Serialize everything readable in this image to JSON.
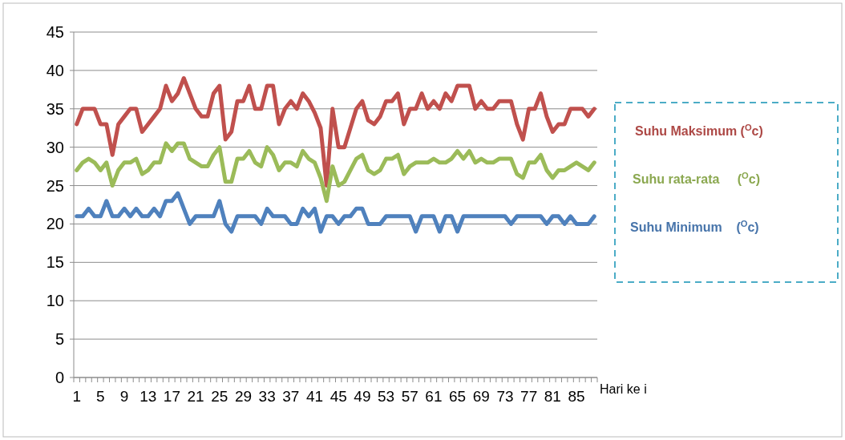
{
  "chart_data": {
    "type": "line",
    "xlabel": "Hari ke i",
    "categories": [
      "1",
      null,
      null,
      null,
      "5",
      null,
      null,
      null,
      "9",
      null,
      null,
      null,
      "13",
      null,
      null,
      null,
      "17",
      null,
      null,
      null,
      "21",
      null,
      null,
      null,
      "25",
      null,
      null,
      null,
      "29",
      null,
      null,
      null,
      "33",
      null,
      null,
      null,
      "37",
      null,
      null,
      null,
      "41",
      null,
      null,
      null,
      "45",
      null,
      null,
      null,
      "49",
      null,
      null,
      null,
      "53",
      null,
      null,
      null,
      "57",
      null,
      null,
      null,
      "61",
      null,
      null,
      null,
      "65",
      null,
      null,
      null,
      "69",
      null,
      null,
      null,
      "73",
      null,
      null,
      null,
      "77",
      null,
      null,
      null,
      "81",
      null,
      null,
      null,
      "85",
      null,
      null,
      null
    ],
    "series": [
      {
        "name": "Suhu Maksimum ($^{O}$c)",
        "color": "#c0504d",
        "values": [
          33,
          35,
          35,
          35,
          33,
          33,
          29,
          33,
          34,
          35,
          35,
          32,
          33,
          34,
          35,
          38,
          36,
          37,
          39,
          37,
          35,
          34,
          34,
          37,
          38,
          31,
          32,
          36,
          36,
          38,
          35,
          35,
          38,
          38,
          33,
          35,
          36,
          35,
          37,
          36,
          34.5,
          32.5,
          25,
          35,
          30,
          30,
          32.5,
          35,
          36,
          33.5,
          33,
          34,
          36,
          36,
          37,
          33,
          35,
          35,
          37,
          35,
          36,
          35,
          37,
          36,
          38,
          38,
          38,
          35,
          36,
          35,
          35,
          36,
          36,
          36,
          33,
          31,
          35,
          35,
          37,
          34,
          32,
          33,
          33,
          35,
          35,
          35,
          34,
          35
        ]
      },
      {
        "name": "Suhu rata-rata     ($^{O}$c)",
        "color": "#9bbb59",
        "values": [
          27,
          28,
          28.5,
          28,
          27,
          28,
          25,
          27,
          28,
          28,
          28.5,
          26.5,
          27,
          28,
          28,
          30.5,
          29.5,
          30.5,
          30.5,
          28.5,
          28,
          27.5,
          27.5,
          29,
          30,
          25.5,
          25.5,
          28.5,
          28.5,
          29.5,
          28,
          27.5,
          30,
          29,
          27,
          28,
          28,
          27.5,
          29.5,
          28.5,
          28,
          26,
          23,
          27.5,
          25,
          25.5,
          27,
          28.5,
          29,
          27,
          26.5,
          27,
          28.5,
          28.5,
          29,
          26.5,
          27.5,
          28,
          28,
          28,
          28.5,
          28,
          28,
          28.5,
          29.5,
          28.5,
          29.5,
          28,
          28.5,
          28,
          28,
          28.5,
          28.5,
          28.5,
          26.5,
          26,
          28,
          28,
          29,
          27,
          26,
          27,
          27,
          27.5,
          28,
          27.5,
          27,
          28
        ]
      },
      {
        "name": "Suhu Minimum    ($^{O}$c)",
        "color": "#4f81bd",
        "values": [
          21,
          21,
          22,
          21,
          21,
          23,
          21,
          21,
          22,
          21,
          22,
          21,
          21,
          22,
          21,
          23,
          23,
          24,
          22,
          20,
          21,
          21,
          21,
          21,
          23,
          20,
          19,
          21,
          21,
          21,
          21,
          20,
          22,
          21,
          21,
          21,
          20,
          20,
          22,
          21,
          22,
          19,
          21,
          21,
          20,
          21,
          21,
          22,
          22,
          20,
          20,
          20,
          21,
          21,
          21,
          21,
          21,
          19,
          21,
          21,
          21,
          19,
          21,
          21,
          19,
          21,
          21,
          21,
          21,
          21,
          21,
          21,
          21,
          20,
          21,
          21,
          21,
          21,
          21,
          20,
          21,
          21,
          20,
          21,
          20,
          20,
          20,
          21
        ]
      }
    ],
    "ylim": [
      0,
      45
    ],
    "yticks": [
      0,
      5,
      10,
      15,
      20,
      25,
      30,
      35,
      40,
      45
    ],
    "grid": "y",
    "legend": "right",
    "marker": "none",
    "line_style": "solid"
  }
}
